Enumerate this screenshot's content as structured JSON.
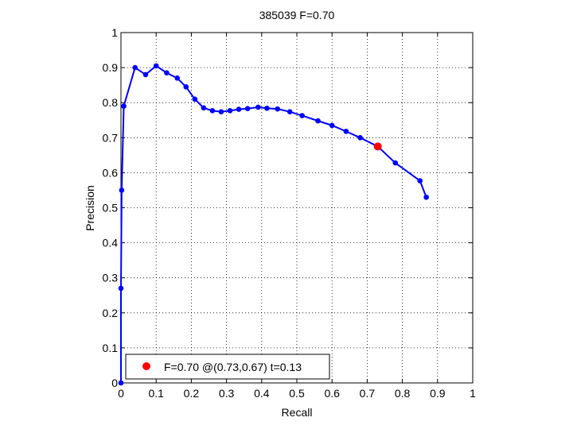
{
  "chart_data": {
    "type": "line",
    "title": "385039 F=0.70",
    "xlabel": "Recall",
    "ylabel": "Precision",
    "xlim": [
      0,
      1
    ],
    "ylim": [
      0,
      1
    ],
    "xticks": [
      "0",
      "0.1",
      "0.2",
      "0.3",
      "0.4",
      "0.5",
      "0.6",
      "0.7",
      "0.8",
      "0.9",
      "1"
    ],
    "yticks": [
      "0",
      "0.1",
      "0.2",
      "0.3",
      "0.4",
      "0.5",
      "0.6",
      "0.7",
      "0.8",
      "0.9",
      "1"
    ],
    "grid": true,
    "grid_style": "dotted",
    "legend_position": "bottom-left",
    "series": [
      {
        "color": "#0000ff",
        "marker": "dot",
        "points": [
          [
            0.0,
            0.0
          ],
          [
            0.0,
            0.27
          ],
          [
            0.002,
            0.55
          ],
          [
            0.008,
            0.79
          ],
          [
            0.04,
            0.9
          ],
          [
            0.07,
            0.88
          ],
          [
            0.1,
            0.905
          ],
          [
            0.13,
            0.885
          ],
          [
            0.16,
            0.87
          ],
          [
            0.185,
            0.845
          ],
          [
            0.21,
            0.81
          ],
          [
            0.235,
            0.785
          ],
          [
            0.26,
            0.777
          ],
          [
            0.285,
            0.774
          ],
          [
            0.31,
            0.777
          ],
          [
            0.335,
            0.781
          ],
          [
            0.36,
            0.783
          ],
          [
            0.39,
            0.787
          ],
          [
            0.415,
            0.784
          ],
          [
            0.445,
            0.782
          ],
          [
            0.48,
            0.774
          ],
          [
            0.515,
            0.763
          ],
          [
            0.56,
            0.748
          ],
          [
            0.6,
            0.735
          ],
          [
            0.64,
            0.718
          ],
          [
            0.68,
            0.7
          ],
          [
            0.73,
            0.675
          ],
          [
            0.78,
            0.628
          ],
          [
            0.85,
            0.577
          ],
          [
            0.868,
            0.53
          ]
        ]
      }
    ],
    "highlight": {
      "x": 0.73,
      "y": 0.675,
      "color": "#ff0000"
    },
    "legend": {
      "label": "F=0.70 @(0.73,0.67) t=0.13",
      "color": "#ff0000"
    }
  }
}
